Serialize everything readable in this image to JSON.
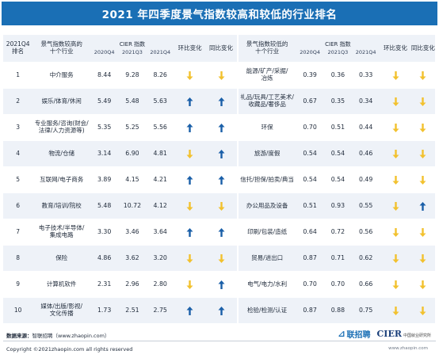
{
  "title": "2021 年四季度景气指数较高和较低的行业排名",
  "headers": {
    "rank": "2021Q4\n排名",
    "high_industry": "景气指数较高的\n十个行业",
    "low_industry": "景气指数较低的\n十个行业",
    "cier_index": "CIER 指数",
    "q_2020q4": "2020Q4",
    "q_2021q3": "2021Q3",
    "q_2021q4": "2021Q4",
    "qoq": "环比变化",
    "yoy": "同比变化"
  },
  "rows": [
    {
      "rank": "1",
      "high": "中介服务",
      "h": [
        "8.44",
        "9.28",
        "8.26"
      ],
      "h_qoq": "down",
      "h_yoy": "down",
      "low": "能源/矿产/采掘/\n冶炼",
      "l": [
        "0.39",
        "0.36",
        "0.33"
      ],
      "l_qoq": "down",
      "l_yoy": "down"
    },
    {
      "rank": "2",
      "high": "娱乐/体育/休闲",
      "h": [
        "5.49",
        "5.48",
        "5.63"
      ],
      "h_qoq": "up",
      "h_yoy": "up",
      "low": "礼品/玩具/工艺美术/\n收藏品/奢侈品",
      "l": [
        "0.67",
        "0.35",
        "0.34"
      ],
      "l_qoq": "down",
      "l_yoy": "down"
    },
    {
      "rank": "3",
      "high": "专业服务/咨询(财会/\n法律/人力资源等)",
      "h": [
        "5.35",
        "5.25",
        "5.56"
      ],
      "h_qoq": "up",
      "h_yoy": "up",
      "low": "环保",
      "l": [
        "0.70",
        "0.51",
        "0.44"
      ],
      "l_qoq": "down",
      "l_yoy": "down"
    },
    {
      "rank": "4",
      "high": "物流/仓储",
      "h": [
        "3.14",
        "6.90",
        "4.81"
      ],
      "h_qoq": "down",
      "h_yoy": "up",
      "low": "旅游/度假",
      "l": [
        "0.54",
        "0.54",
        "0.46"
      ],
      "l_qoq": "down",
      "l_yoy": "down"
    },
    {
      "rank": "5",
      "high": "互联网/电子商务",
      "h": [
        "3.89",
        "4.15",
        "4.21"
      ],
      "h_qoq": "up",
      "h_yoy": "up",
      "low": "信托/担保/拍卖/典当",
      "l": [
        "0.54",
        "0.54",
        "0.49"
      ],
      "l_qoq": "down",
      "l_yoy": "down"
    },
    {
      "rank": "6",
      "high": "教育/培训/院校",
      "h": [
        "5.48",
        "10.72",
        "4.12"
      ],
      "h_qoq": "down",
      "h_yoy": "down",
      "low": "办公用品及设备",
      "l": [
        "0.51",
        "0.93",
        "0.55"
      ],
      "l_qoq": "down",
      "l_yoy": "up"
    },
    {
      "rank": "7",
      "high": "电子技术/半导体/\n集成电路",
      "h": [
        "3.30",
        "3.46",
        "3.64"
      ],
      "h_qoq": "up",
      "h_yoy": "up",
      "low": "印刷/包装/造纸",
      "l": [
        "0.64",
        "0.72",
        "0.56"
      ],
      "l_qoq": "down",
      "l_yoy": "down"
    },
    {
      "rank": "8",
      "high": "保险",
      "h": [
        "4.86",
        "3.62",
        "3.20"
      ],
      "h_qoq": "down",
      "h_yoy": "down",
      "low": "贸易/进出口",
      "l": [
        "0.87",
        "0.71",
        "0.62"
      ],
      "l_qoq": "down",
      "l_yoy": "down"
    },
    {
      "rank": "9",
      "high": "计算机软件",
      "h": [
        "2.31",
        "2.96",
        "2.80"
      ],
      "h_qoq": "down",
      "h_yoy": "up",
      "low": "电气/电力/水利",
      "l": [
        "0.70",
        "0.70",
        "0.66"
      ],
      "l_qoq": "down",
      "l_yoy": "down"
    },
    {
      "rank": "10",
      "high": "媒体/出版/影视/\n文化传播",
      "h": [
        "1.73",
        "2.51",
        "2.75"
      ],
      "h_qoq": "up",
      "h_yoy": "up",
      "low": "检验/检测/认证",
      "l": [
        "0.87",
        "0.88",
        "0.75"
      ],
      "l_qoq": "down",
      "l_yoy": "down"
    }
  ],
  "footer": {
    "source_label": "数据来源：",
    "source_text": "智联招聘（www.zhaopin.com）",
    "copyright": "Copyright ©2021zhaopin.com all rights reserved",
    "logo_zhilian": "联招聘",
    "logo_cier": "CIER",
    "logo_cier_sub": "中国就业研究所",
    "site": "www.zhaopin.com"
  },
  "colors": {
    "title_bar": "#1a6fb5",
    "up_arrow": "#1a5fa8",
    "down_arrow": "#f2c12e",
    "stripe": "#eef2f8"
  }
}
